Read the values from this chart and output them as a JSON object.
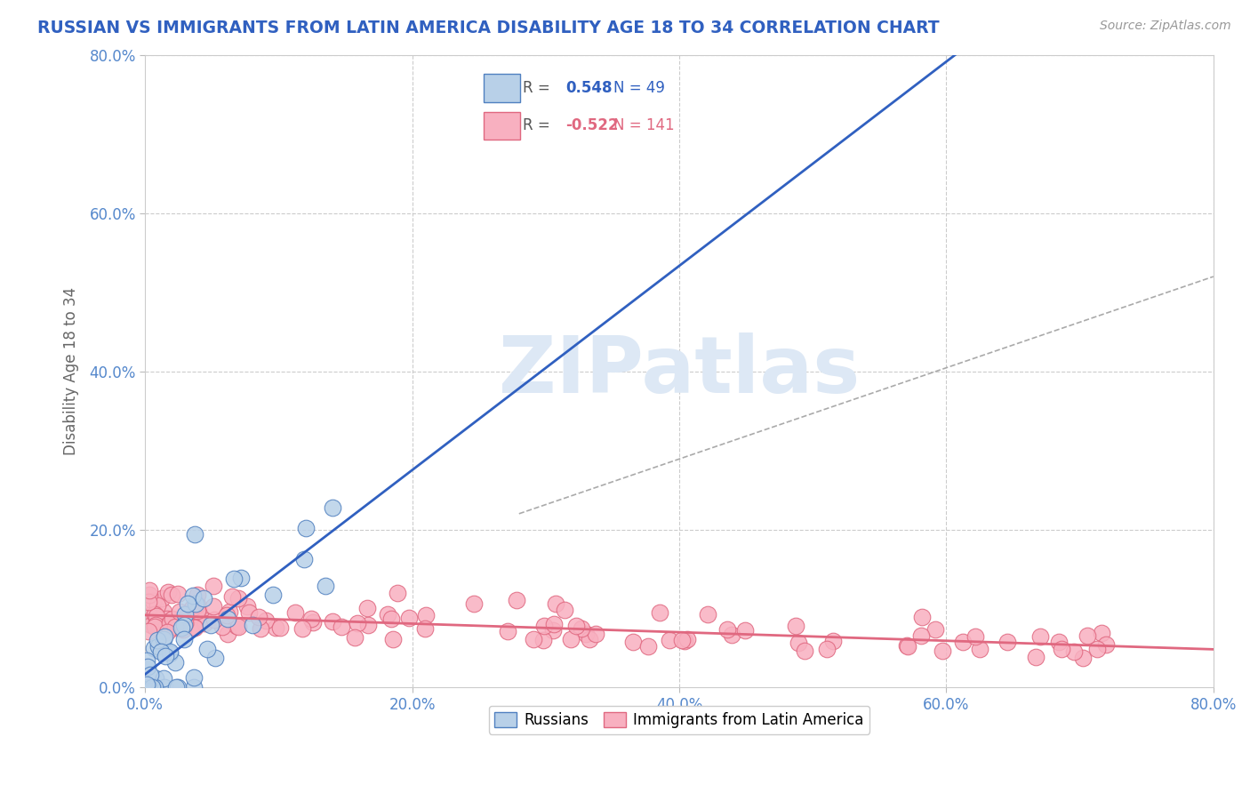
{
  "title": "RUSSIAN VS IMMIGRANTS FROM LATIN AMERICA DISABILITY AGE 18 TO 34 CORRELATION CHART",
  "source": "Source: ZipAtlas.com",
  "ylabel": "Disability Age 18 to 34",
  "xlim": [
    0.0,
    0.8
  ],
  "ylim": [
    0.0,
    0.8
  ],
  "xticks": [
    0.0,
    0.2,
    0.4,
    0.6,
    0.8
  ],
  "yticks": [
    0.0,
    0.2,
    0.4,
    0.6,
    0.8
  ],
  "xticklabels": [
    "0.0%",
    "20.0%",
    "40.0%",
    "60.0%",
    "80.0%"
  ],
  "yticklabels": [
    "0.0%",
    "20.0%",
    "40.0%",
    "60.0%",
    "80.0%"
  ],
  "r_russian": 0.548,
  "n_russian": 49,
  "r_latin": -0.522,
  "n_latin": 141,
  "russian_fill": "#b8d0e8",
  "russian_edge": "#5080c0",
  "latin_fill": "#f8b0c0",
  "latin_edge": "#e06880",
  "russian_line_color": "#3060c0",
  "latin_line_color": "#e06880",
  "dashed_line_color": "#aaaaaa",
  "background_color": "#ffffff",
  "grid_color": "#cccccc",
  "title_color": "#3060c0",
  "tick_color": "#5588cc",
  "watermark_text": "ZIPatlas",
  "watermark_color": "#dde8f5",
  "legend_r1_color": "#3060c0",
  "legend_r2_color": "#e06880",
  "rus_seed": 42,
  "lat_seed": 77
}
